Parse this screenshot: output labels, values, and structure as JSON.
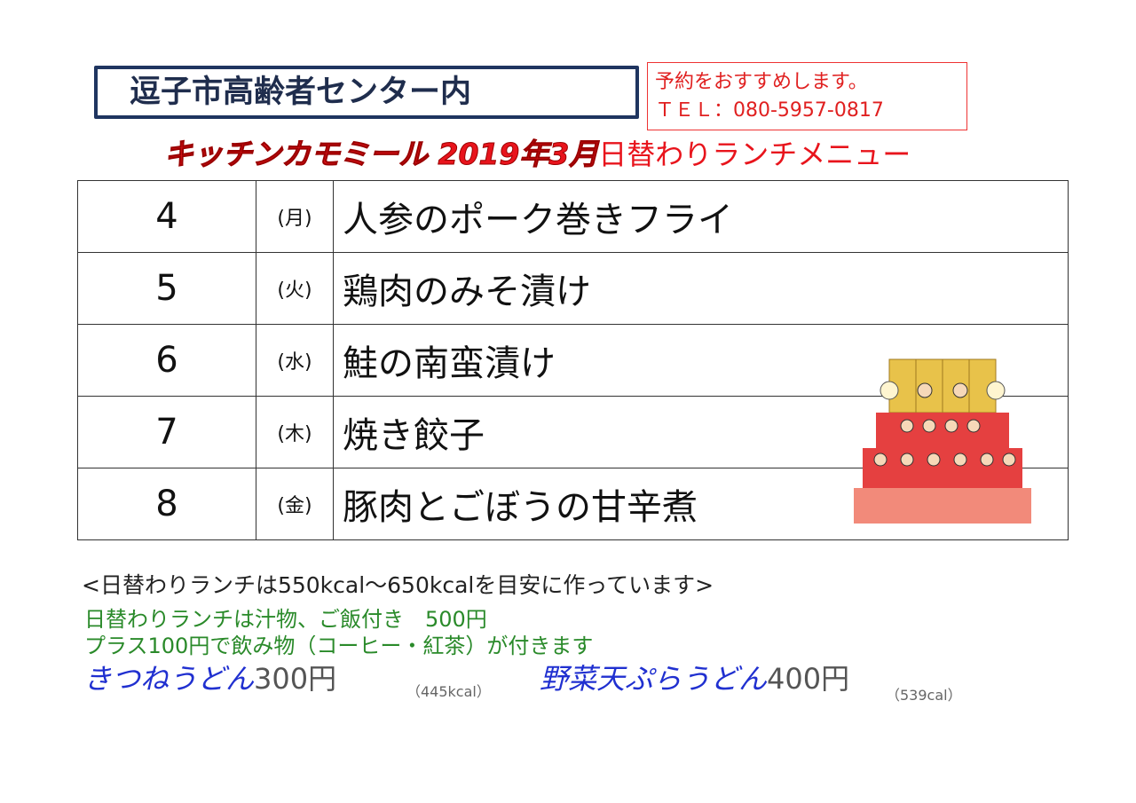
{
  "header": {
    "location": "逗子市高齢者センター内",
    "reservation": "予約をおすすめします。",
    "tel": "ＴＥＬ：080-5957-0817"
  },
  "title": {
    "shop": "キッチンカモミール 2019年3月",
    "menu": "日替わりランチメニュー"
  },
  "menu": [
    {
      "day": "4",
      "weekday": "(月)",
      "dish": "人参のポーク巻きフライ"
    },
    {
      "day": "5",
      "weekday": "(火)",
      "dish": "鶏肉のみそ漬け"
    },
    {
      "day": "6",
      "weekday": "(水)",
      "dish": "鮭の南蛮漬け"
    },
    {
      "day": "7",
      "weekday": "(木)",
      "dish": "焼き餃子"
    },
    {
      "day": "8",
      "weekday": "(金)",
      "dish": "豚肉とごぼうの甘辛煮"
    }
  ],
  "notes": {
    "calorie": "<日替わりランチは550kcal～650kcalを目安に作っています>",
    "lunch": "日替わりランチは汁物、ご飯付き　500円",
    "drink": "プラス100円で飲み物（コーヒー・紅茶）が付きます"
  },
  "udon": [
    {
      "name": "きつねうどん",
      "price": "300円",
      "kcal": "（445kcal）"
    },
    {
      "name": "野菜天ぷらうどん",
      "price": "400円",
      "kcal": "（539cal）"
    }
  ],
  "illustration": "hina-dolls-icon"
}
